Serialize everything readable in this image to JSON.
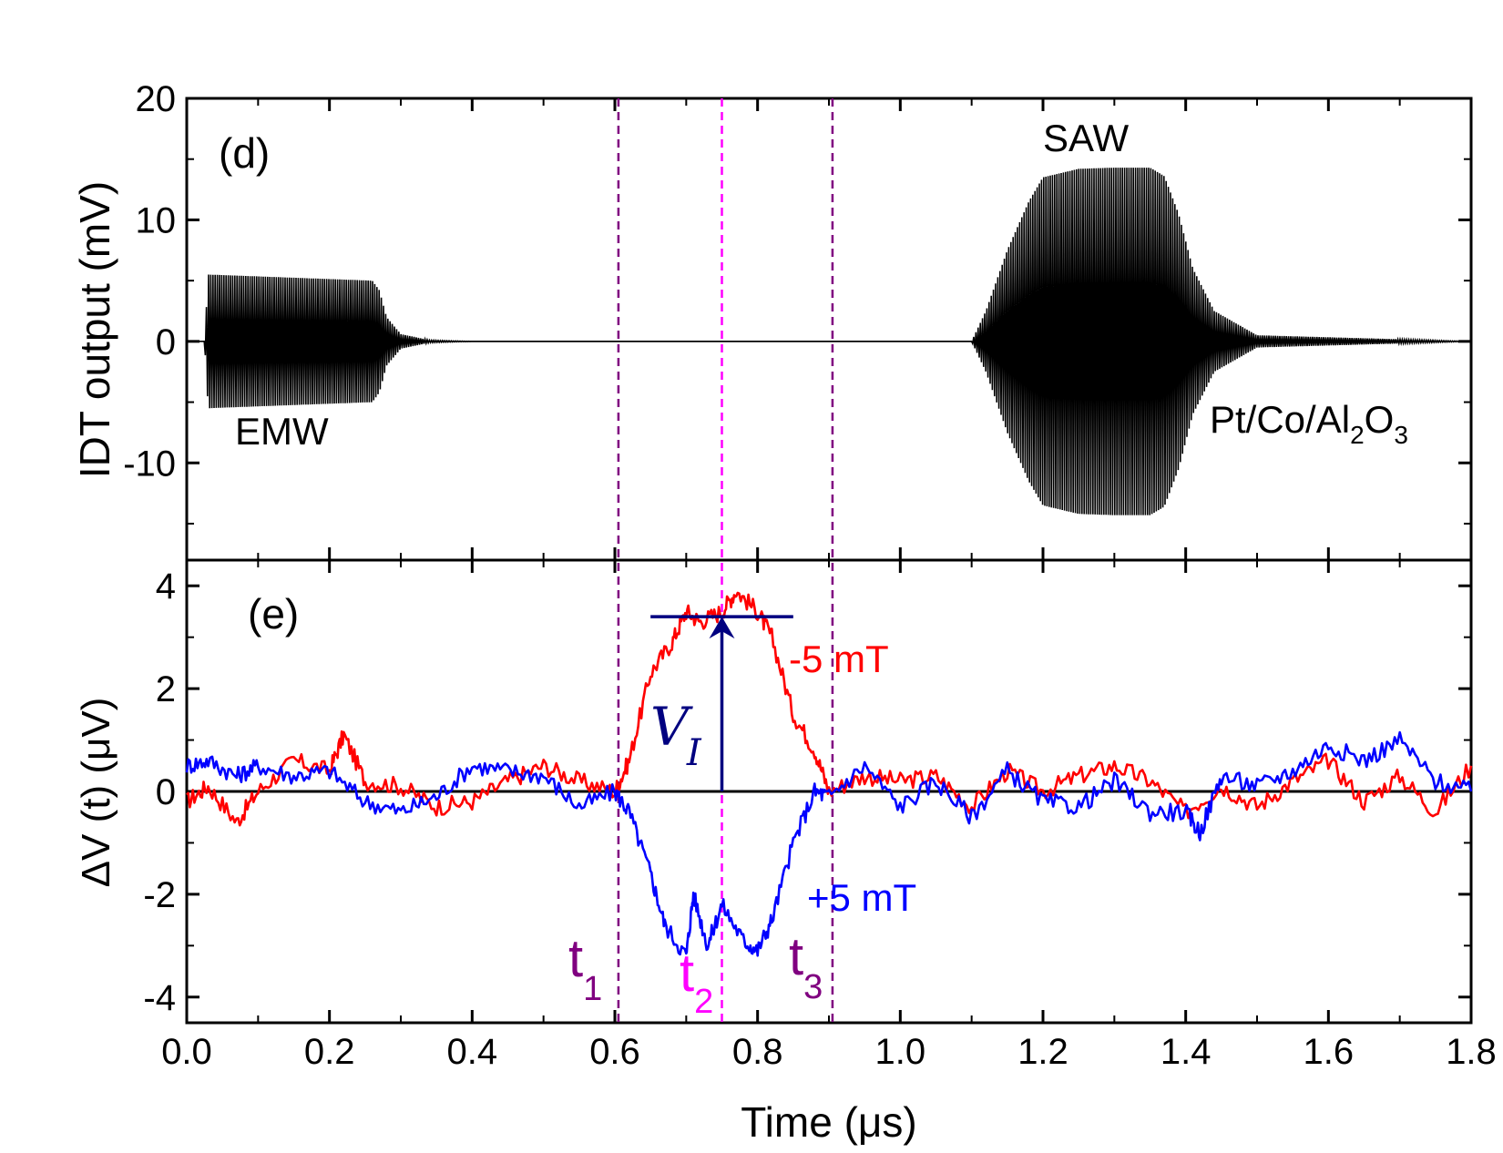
{
  "chart_data": [
    {
      "panel": "(d)",
      "type": "line",
      "xlabel": "Time (μs)",
      "ylabel": "IDT output (mV)",
      "xlim": [
        0.0,
        1.8
      ],
      "ylim": [
        -18,
        20
      ],
      "xticks": [
        "0.0",
        "0.2",
        "0.4",
        "0.6",
        "0.8",
        "1.0",
        "1.2",
        "1.4",
        "1.6",
        "1.8"
      ],
      "yticks": [
        {
          "value": 20,
          "label": "20"
        },
        {
          "value": 10,
          "label": "10"
        },
        {
          "value": 0,
          "label": "0"
        },
        {
          "value": -10,
          "label": "-10"
        }
      ],
      "series": [
        {
          "name": "IDT output",
          "color": "#000000",
          "envelope": {
            "t": [
              0.0,
              0.025,
              0.03,
              0.26,
              0.27,
              0.28,
              0.3,
              0.34,
              0.4,
              1.1,
              1.12,
              1.15,
              1.18,
              1.2,
              1.25,
              1.3,
              1.35,
              1.37,
              1.39,
              1.41,
              1.44,
              1.5,
              1.8
            ],
            "amp": [
              0,
              0,
              5.5,
              5.0,
              4.2,
              2.0,
              0.6,
              0.1,
              0,
              0,
              2.5,
              7.5,
              11.5,
              13.5,
              14.2,
              14.3,
              14.3,
              13.6,
              10.5,
              6.0,
              2.5,
              0.5,
              0
            ]
          }
        }
      ],
      "annotations": [
        {
          "text": "(d)"
        },
        {
          "text": "SAW"
        },
        {
          "text": "EMW"
        },
        {
          "text": "Pt/Co/Al",
          "sub1": "2",
          "mid": "O",
          "sub2": "3"
        }
      ]
    },
    {
      "panel": "(e)",
      "type": "line",
      "xlabel": "Time (μs)",
      "ylabel": "ΔV (t) (μV)",
      "xlim": [
        0.0,
        1.8
      ],
      "ylim": [
        -4.5,
        4.5
      ],
      "yticks": [
        {
          "value": 4,
          "label": "4"
        },
        {
          "value": 2,
          "label": "2"
        },
        {
          "value": 0,
          "label": "0"
        },
        {
          "value": -2,
          "label": "-2"
        },
        {
          "value": -4,
          "label": "-4"
        }
      ],
      "series": [
        {
          "name": "-5 mT",
          "color": "#ff0000",
          "x": [
            0.0,
            0.03,
            0.07,
            0.1,
            0.15,
            0.2,
            0.22,
            0.25,
            0.3,
            0.35,
            0.4,
            0.45,
            0.5,
            0.55,
            0.6,
            0.62,
            0.65,
            0.68,
            0.7,
            0.72,
            0.75,
            0.77,
            0.8,
            0.82,
            0.85,
            0.88,
            0.9,
            0.95,
            1.0,
            1.05,
            1.1,
            1.15,
            1.2,
            1.25,
            1.3,
            1.35,
            1.4,
            1.45,
            1.5,
            1.55,
            1.6,
            1.65,
            1.7,
            1.75,
            1.8
          ],
          "y": [
            -0.2,
            0.1,
            -0.6,
            0.0,
            0.6,
            0.4,
            1.1,
            0.2,
            0.1,
            -0.3,
            -0.2,
            0.2,
            0.5,
            0.2,
            0.0,
            0.6,
            2.3,
            2.9,
            3.5,
            3.3,
            3.5,
            3.9,
            3.5,
            3.0,
            1.5,
            0.8,
            0.0,
            0.3,
            0.2,
            0.3,
            -0.3,
            0.4,
            0.0,
            0.3,
            0.5,
            0.2,
            -0.4,
            0.1,
            -0.3,
            0.2,
            0.6,
            -0.2,
            0.3,
            -0.4,
            0.5
          ]
        },
        {
          "name": "+5 mT",
          "color": "#0000ff",
          "x": [
            0.0,
            0.03,
            0.07,
            0.1,
            0.15,
            0.2,
            0.25,
            0.3,
            0.35,
            0.4,
            0.45,
            0.5,
            0.55,
            0.6,
            0.62,
            0.65,
            0.67,
            0.7,
            0.71,
            0.73,
            0.75,
            0.78,
            0.8,
            0.82,
            0.85,
            0.88,
            0.9,
            0.95,
            1.0,
            1.05,
            1.1,
            1.15,
            1.2,
            1.25,
            1.3,
            1.35,
            1.4,
            1.42,
            1.45,
            1.5,
            1.55,
            1.6,
            1.65,
            1.7,
            1.75,
            1.8
          ],
          "y": [
            0.5,
            0.6,
            0.3,
            0.5,
            0.3,
            0.4,
            -0.2,
            -0.4,
            -0.1,
            0.5,
            0.4,
            0.3,
            -0.3,
            0.0,
            -0.4,
            -1.6,
            -2.6,
            -3.2,
            -2.0,
            -3.0,
            -2.2,
            -2.9,
            -3.1,
            -2.5,
            -1.0,
            0.0,
            -0.1,
            0.5,
            -0.3,
            0.2,
            -0.5,
            0.4,
            -0.2,
            -0.3,
            0.2,
            -0.4,
            -0.4,
            -0.8,
            0.3,
            0.1,
            0.4,
            0.9,
            0.6,
            1.0,
            0.2,
            0.0
          ]
        }
      ],
      "reference_lines": {
        "zero": 0,
        "vertical": [
          {
            "name": "t1",
            "x": 0.605,
            "color": "#800080",
            "label": "t",
            "sub": "1"
          },
          {
            "name": "t2",
            "x": 0.75,
            "color": "#ff00ff",
            "label": "t",
            "sub": "2"
          },
          {
            "name": "t3",
            "x": 0.905,
            "color": "#800080",
            "label": "t",
            "sub": "3"
          }
        ]
      },
      "arrow": {
        "x": 0.75,
        "from": 0,
        "to": 3.4,
        "cap_x0": 0.65,
        "cap_x1": 0.85,
        "color": "#000080"
      },
      "annotations": [
        {
          "text": "(e)"
        },
        {
          "text": "-5 mT"
        },
        {
          "text": "+5 mT"
        },
        {
          "text": "V",
          "sub": "I"
        }
      ]
    }
  ],
  "colors": {
    "red": "#ff0000",
    "blue": "#0000ff",
    "purple": "#800080",
    "magenta": "#ff00ff",
    "navy": "#000080",
    "black": "#000000"
  }
}
